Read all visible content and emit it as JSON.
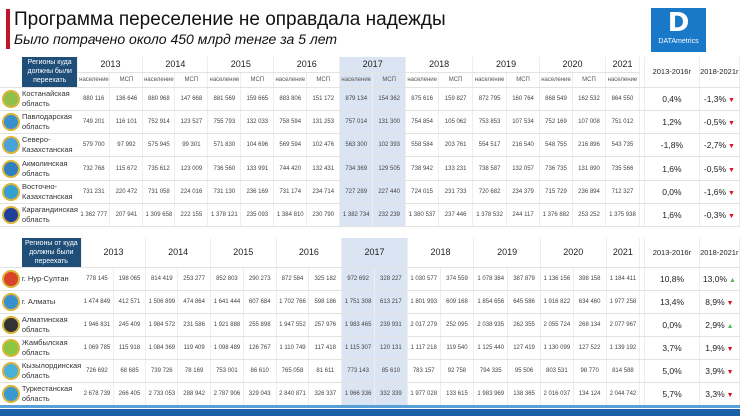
{
  "header": {
    "title": "Программа переселение не оправдала надежды",
    "subtitle": "Было потрачено около 450 млрд тенге за 5 лет",
    "logo_text": "DATAmetrics",
    "logo_letter": "D"
  },
  "colors": {
    "header_cell": "#1f4e79",
    "highlight_2017": "#dbe4f3",
    "down": "#e0101c",
    "up": "#5cb85c",
    "title_bar": "#c0162c"
  },
  "years": [
    "2013",
    "2014",
    "2015",
    "2016",
    "2017",
    "2018",
    "2019",
    "2020",
    "2021"
  ],
  "growth_headers": [
    "2013-2016г",
    "2018-2021г"
  ],
  "sub_pop": "население",
  "sub_msp": "МСП",
  "table_to": {
    "header": "Регионы куда должны были переехать",
    "rows": [
      {
        "name": "Костанайская область",
        "color": "#8fc04a",
        "values": [
          "880 116",
          "136 646",
          "880 968",
          "147 668",
          "881 569",
          "159 665",
          "883 806",
          "151 172",
          "879 134",
          "154 362",
          "875 616",
          "159 827",
          "872 795",
          "160 764",
          "868 549",
          "162 532",
          "864 550"
        ],
        "g1": "0,4%",
        "g2": "-1,3%",
        "trend": "down"
      },
      {
        "name": "Павлодарская область",
        "color": "#3a8fcf",
        "values": [
          "749 201",
          "116 101",
          "752 914",
          "123 527",
          "755 793",
          "132 033",
          "758 594",
          "131 253",
          "757 014",
          "131 300",
          "754 854",
          "105 062",
          "753 853",
          "107 534",
          "752 169",
          "107 008",
          "751 012"
        ],
        "g1": "1,2%",
        "g2": "-0,5%",
        "trend": "down"
      },
      {
        "name": "Северо-Казахстанская",
        "color": "#4aa3d8",
        "values": [
          "579 700",
          "97 992",
          "575 945",
          "99 301",
          "571 830",
          "104 696",
          "569 594",
          "102 476",
          "563 300",
          "102 393",
          "558 584",
          "203 761",
          "554 517",
          "216 540",
          "548 755",
          "216 896",
          "543 735"
        ],
        "g1": "-1,8%",
        "g2": "-2,7%",
        "trend": "down"
      },
      {
        "name": "Акмолинская область",
        "color": "#2f7fc1",
        "values": [
          "732 768",
          "115 672",
          "735 612",
          "123 009",
          "736 560",
          "133 991",
          "744 420",
          "132 431",
          "734 369",
          "129 505",
          "738 942",
          "133 231",
          "738 587",
          "132 057",
          "736 735",
          "131 890",
          "735 566"
        ],
        "g1": "1,6%",
        "g2": "-0,5%",
        "trend": "down"
      },
      {
        "name": "Восточно-Казахстанская",
        "color": "#34a0d0",
        "values": [
          "731 231",
          "220 472",
          "731 058",
          "224 016",
          "731 130",
          "236 169",
          "731 174",
          "234 714",
          "727 289",
          "227 440",
          "724 015",
          "231 733",
          "720 682",
          "234 379",
          "715 729",
          "236 894",
          "712 327"
        ],
        "g1": "0,0%",
        "g2": "-1,6%",
        "trend": "down"
      },
      {
        "name": "Карагандинская область",
        "color": "#1f3f99",
        "values": [
          "1 362 777",
          "207 941",
          "1 309 658",
          "222 155",
          "1 378 121",
          "235 093",
          "1 384 810",
          "230 790",
          "1 382 734",
          "232 239",
          "1 380 537",
          "237 446",
          "1 378 532",
          "244 117",
          "1 376 882",
          "253 252",
          "1 375 938"
        ],
        "g1": "1,6%",
        "g2": "-0,3%",
        "trend": "down"
      }
    ]
  },
  "table_from": {
    "header": "Регионы от куда должны были переехать",
    "rows": [
      {
        "name": "г. Нур-Султан",
        "color": "#d9422b",
        "values": [
          "778 145",
          "198 065",
          "814 419",
          "253 277",
          "852 803",
          "290 273",
          "872 584",
          "325 182",
          "972 692",
          "328 227",
          "1 030 577",
          "374 559",
          "1 078 384",
          "387 879",
          "1 136 156",
          "398 158",
          "1 184 411"
        ],
        "g1": "10,8%",
        "g2": "13,0%",
        "trend": "up"
      },
      {
        "name": "г. Алматы",
        "color": "#3a8fcf",
        "values": [
          "1 474 849",
          "412 571",
          "1 506 899",
          "474 864",
          "1 641 444",
          "607 684",
          "1 702 766",
          "598 186",
          "1 751 308",
          "613 217",
          "1 801 993",
          "609 168",
          "1 854 656",
          "645 586",
          "1 916 822",
          "634 460",
          "1 977 258"
        ],
        "g1": "13,4%",
        "g2": "8,9%",
        "trend": "down"
      },
      {
        "name": "Алматинская область",
        "color": "#333333",
        "values": [
          "1 946 831",
          "245 409",
          "1 984 572",
          "231 586",
          "1 921 888",
          "255 898",
          "1 947 552",
          "257 976",
          "1 983 465",
          "239 931",
          "2 017 279",
          "252 095",
          "2 038 935",
          "262 355",
          "2 055 724",
          "268 134",
          "2 077 967"
        ],
        "g1": "0,0%",
        "g2": "2,9%",
        "trend": "up"
      },
      {
        "name": "Жамбылская область",
        "color": "#8cc63f",
        "values": [
          "1 069 785",
          "115 918",
          "1 084 369",
          "119 409",
          "1 098 489",
          "126 767",
          "1 110 749",
          "117 418",
          "1 115 307",
          "120 131",
          "1 117 218",
          "119 540",
          "1 125 440",
          "127 419",
          "1 130 099",
          "127 522",
          "1 139 192"
        ],
        "g1": "3,7%",
        "g2": "1,9%",
        "trend": "down"
      },
      {
        "name": "Кызылординская область",
        "color": "#4ab0d8",
        "values": [
          "726 692",
          "68 685",
          "739 726",
          "78 169",
          "753 001",
          "86 610",
          "765 058",
          "81 611",
          "773 143",
          "85 610",
          "783 157",
          "92 758",
          "794 335",
          "95 506",
          "803 531",
          "98 770",
          "814 588"
        ],
        "g1": "5,0%",
        "g2": "3,9%",
        "trend": "down"
      },
      {
        "name": "Туркестанская область",
        "color": "#3a9ad0",
        "values": [
          "2 678 739",
          "266 405",
          "2 733 053",
          "288 942",
          "2 787 906",
          "329 043",
          "2 840 871",
          "326 337",
          "1 966 336",
          "332 339",
          "1 977 028",
          "133 615",
          "1 983 969",
          "138 365",
          "2 016 037",
          "134 124",
          "2 044 742"
        ],
        "g1": "5,7%",
        "g2": "3,3%",
        "trend": "down"
      }
    ]
  }
}
